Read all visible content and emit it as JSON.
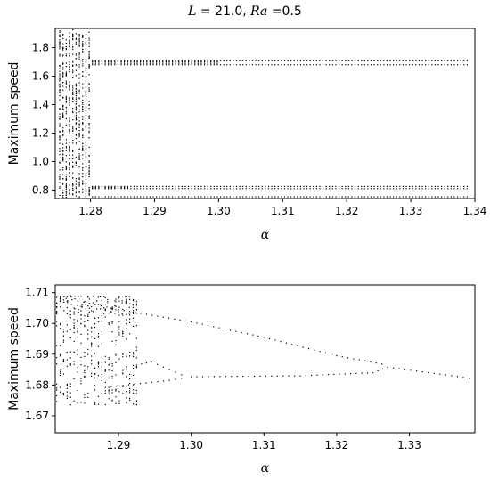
{
  "figure": {
    "title_parts": {
      "L_symbol": "L",
      "eq1": " = 21.0, ",
      "Ra_symbol": "Ra",
      "eq2": " =0.5"
    }
  },
  "chart_data": [
    {
      "type": "scatter",
      "xlabel": "α",
      "ylabel": "Maximum speed",
      "xlim": [
        1.2745,
        1.34
      ],
      "ylim": [
        0.74,
        1.935
      ],
      "xticks": [
        "1.28",
        "1.29",
        "1.30",
        "1.31",
        "1.32",
        "1.33",
        "1.34"
      ],
      "yticks": [
        "0.8",
        "1.0",
        "1.2",
        "1.4",
        "1.6",
        "1.8"
      ],
      "grid": false,
      "point_color": "#000000",
      "series": [
        {
          "kind": "upper_branch",
          "x_range": [
            1.2803,
            1.339
          ],
          "y": [
            1.68,
            1.712
          ],
          "step": 0.0005
        },
        {
          "kind": "middle_branch",
          "x_range": [
            1.2803,
            1.339
          ],
          "y": [
            0.81,
            0.825
          ],
          "step": 0.0005
        },
        {
          "kind": "lower_branch",
          "x_range": [
            1.2803,
            1.339
          ],
          "y": [
            0.752
          ],
          "step": 0.0005
        },
        {
          "kind": "chaotic_region",
          "x_range": [
            1.2752,
            1.2798
          ],
          "y_range": [
            0.748,
            1.93
          ],
          "columns": 10,
          "points_per_column": 70
        }
      ]
    },
    {
      "type": "scatter",
      "xlabel": "α",
      "ylabel": "Maximum speed",
      "xlim": [
        1.2813,
        1.339
      ],
      "ylim": [
        1.6645,
        1.7125
      ],
      "xticks": [
        "1.29",
        "1.30",
        "1.31",
        "1.32",
        "1.33"
      ],
      "yticks": [
        "1.67",
        "1.68",
        "1.69",
        "1.70",
        "1.71"
      ],
      "grid": false,
      "point_color": "#000000",
      "series": [
        {
          "kind": "top_branch",
          "x": [
            1.282,
            1.29,
            1.3,
            1.31,
            1.32,
            1.327
          ],
          "y": [
            1.7085,
            1.7045,
            1.7005,
            1.6955,
            1.6895,
            1.6865
          ]
        },
        {
          "kind": "tail_after_collapse",
          "x": [
            1.327,
            1.339
          ],
          "y": [
            1.6858,
            1.682
          ]
        },
        {
          "kind": "inner_upper_branch",
          "x": [
            1.2925,
            1.2945,
            1.297,
            1.2995
          ],
          "y": [
            1.6865,
            1.6875,
            1.685,
            1.6825
          ]
        },
        {
          "kind": "inner_lower_branch",
          "x": [
            1.289,
            1.293,
            1.297,
            1.2995
          ],
          "y": [
            1.6795,
            1.6805,
            1.6815,
            1.6825
          ]
        },
        {
          "kind": "flat_branch",
          "x": [
            1.3,
            1.315,
            1.325,
            1.327
          ],
          "y": [
            1.6827,
            1.683,
            1.684,
            1.6858
          ]
        },
        {
          "kind": "chaotic_region",
          "x_range": [
            1.2815,
            1.2925
          ],
          "y_range": [
            1.6735,
            1.709
          ],
          "columns": 24,
          "points_per_column": 16
        }
      ]
    }
  ]
}
